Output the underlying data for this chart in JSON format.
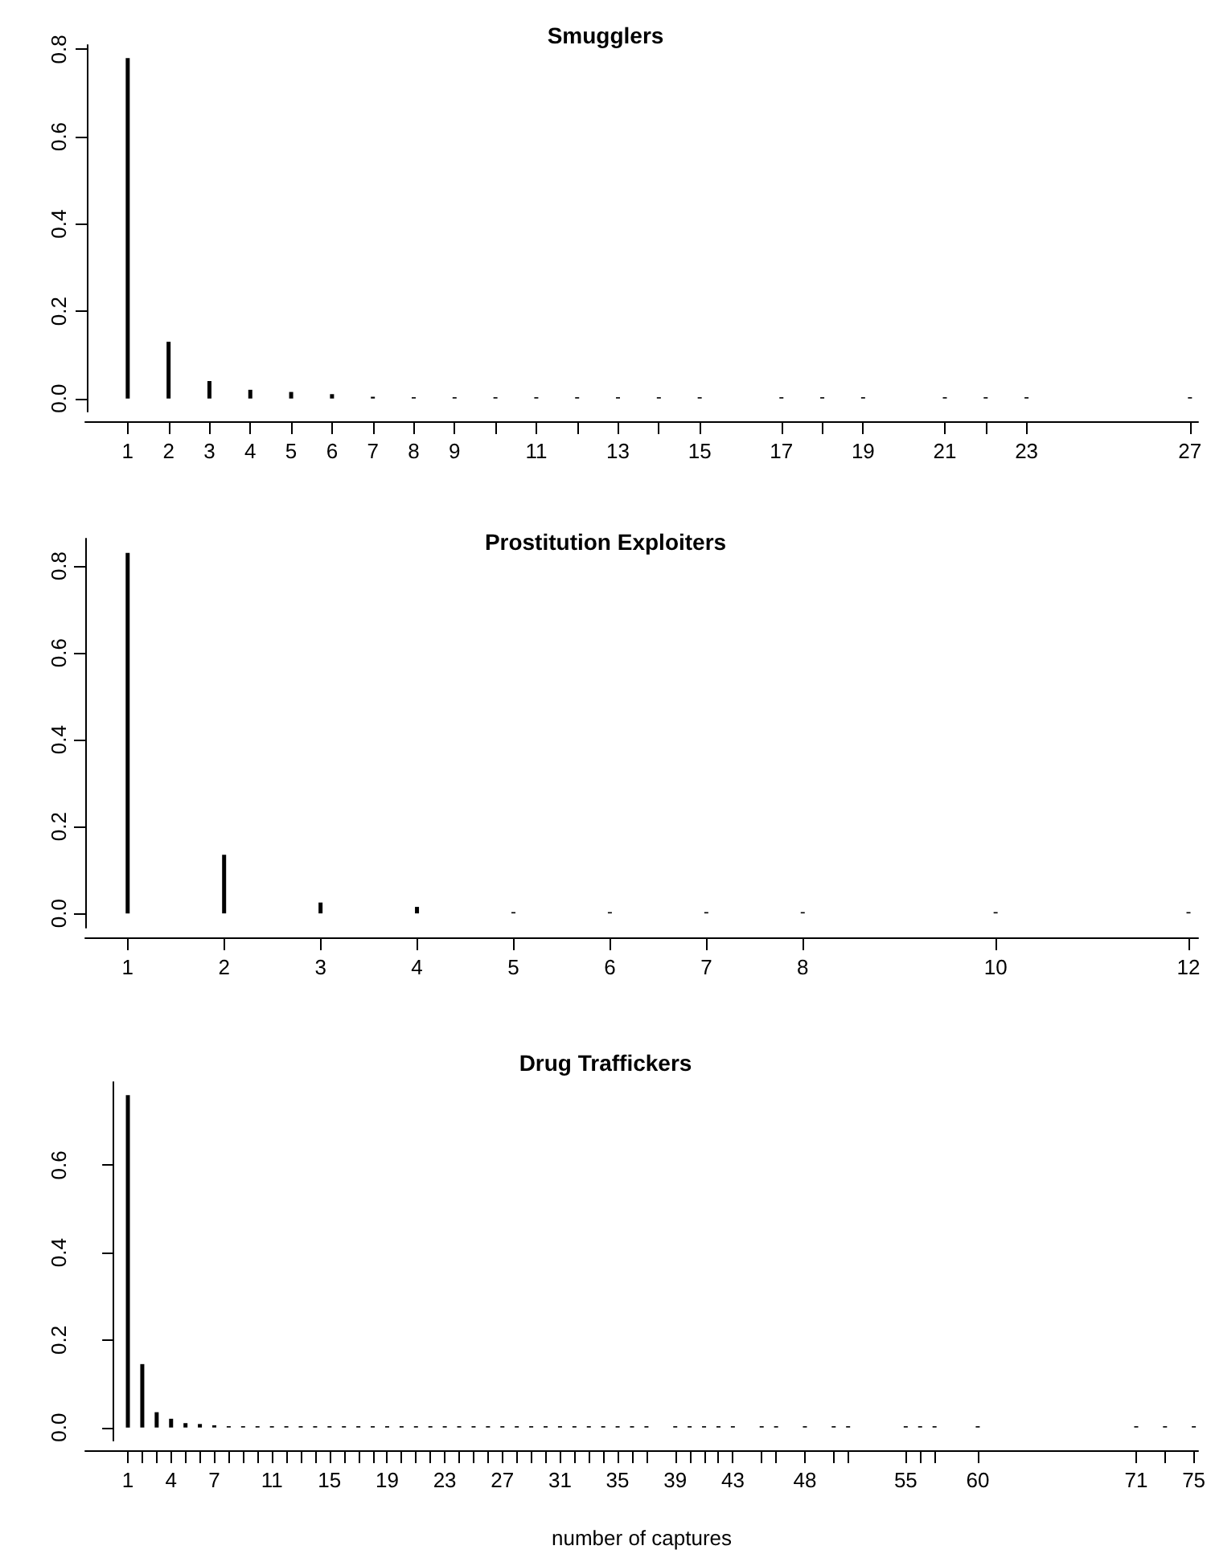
{
  "chart_data": [
    {
      "type": "bar",
      "title": "Smugglers",
      "x": [
        1,
        2,
        3,
        4,
        5,
        6,
        7,
        8,
        9,
        10,
        11,
        12,
        13,
        14,
        15,
        17,
        18,
        19,
        21,
        22,
        23,
        27
      ],
      "series": [
        {
          "color": "#000000",
          "values": [
            0.78,
            0.13,
            0.04,
            0.02,
            0.015,
            0.01,
            0.004,
            0.003,
            0.003,
            0.003,
            0.003,
            0.003,
            0.003,
            0.003,
            0.003,
            0.003,
            0.003,
            0.003,
            0.003,
            0.003,
            0.003,
            0.003
          ]
        }
      ],
      "xlim": [
        -0.04,
        27.2
      ],
      "ylim": [
        -0.03,
        0.81
      ],
      "yticks": [
        {
          "value": 0,
          "label": "0.0"
        },
        {
          "value": 0.2,
          "label": "0.2"
        },
        {
          "value": 0.4,
          "label": "0.4"
        },
        {
          "value": 0.6,
          "label": "0.6"
        },
        {
          "value": 0.8,
          "label": "0.8"
        }
      ],
      "xticks": [
        1,
        2,
        3,
        4,
        5,
        6,
        7,
        8,
        9,
        {
          "value": 10,
          "label": null
        },
        11,
        {
          "value": 12,
          "label": null
        },
        13,
        {
          "value": 14,
          "label": null
        },
        15,
        17,
        {
          "value": 18,
          "label": null
        },
        19,
        21,
        {
          "value": 22,
          "label": null
        },
        23,
        27
      ]
    },
    {
      "type": "bar",
      "title": "Prostitution Exploiters",
      "x": [
        1,
        2,
        3,
        4,
        5,
        6,
        7,
        8,
        10,
        12
      ],
      "series": [
        {
          "color": "#000000",
          "values": [
            0.83,
            0.135,
            0.025,
            0.015,
            0.003,
            0.003,
            0.003,
            0.003,
            0.003,
            0.003
          ]
        }
      ],
      "xlim": [
        0.56,
        12.1
      ],
      "ylim": [
        -0.033,
        0.863
      ],
      "yticks": [
        {
          "value": 0,
          "label": "0.0"
        },
        {
          "value": 0.2,
          "label": "0.2"
        },
        {
          "value": 0.4,
          "label": "0.4"
        },
        {
          "value": 0.6,
          "label": "0.6"
        },
        {
          "value": 0.8,
          "label": "0.8"
        }
      ],
      "xticks": [
        1,
        2,
        3,
        4,
        5,
        6,
        7,
        8,
        10,
        12
      ]
    },
    {
      "type": "bar",
      "title": "Drug Traffickers",
      "xlabel": "number of captures",
      "x": [
        1,
        2,
        3,
        4,
        5,
        6,
        7,
        8,
        9,
        10,
        11,
        12,
        13,
        14,
        15,
        16,
        17,
        18,
        19,
        20,
        21,
        22,
        23,
        24,
        25,
        26,
        27,
        28,
        29,
        30,
        31,
        32,
        33,
        34,
        35,
        36,
        37,
        39,
        40,
        41,
        42,
        43,
        45,
        46,
        48,
        50,
        51,
        55,
        56,
        57,
        60,
        71,
        73,
        75
      ],
      "series": [
        {
          "color": "#000000",
          "values": [
            0.76,
            0.145,
            0.035,
            0.02,
            0.01,
            0.008,
            0.005,
            0.003,
            0.003,
            0.003,
            0.003,
            0.003,
            0.003,
            0.003,
            0.003,
            0.003,
            0.003,
            0.003,
            0.003,
            0.003,
            0.003,
            0.003,
            0.003,
            0.003,
            0.003,
            0.003,
            0.003,
            0.003,
            0.003,
            0.003,
            0.003,
            0.003,
            0.003,
            0.003,
            0.003,
            0.003,
            0.003,
            0.003,
            0.003,
            0.003,
            0.003,
            0.003,
            0.003,
            0.003,
            0.003,
            0.003,
            0.003,
            0.003,
            0.003,
            0.003,
            0.003,
            0.003,
            0.003,
            0.003
          ]
        }
      ],
      "xlim": [
        -1.96,
        75.3
      ],
      "ylim": [
        -0.03,
        0.79
      ],
      "yticks": [
        {
          "value": 0,
          "label": "0.0"
        },
        {
          "value": 0.2,
          "label": "0.2"
        },
        {
          "value": 0.4,
          "label": "0.4"
        },
        {
          "value": 0.6,
          "label": "0.6"
        }
      ],
      "xticks": [
        1,
        {
          "value": 2,
          "label": null
        },
        {
          "value": 3,
          "label": null
        },
        4,
        {
          "value": 5,
          "label": null
        },
        {
          "value": 6,
          "label": null
        },
        7,
        {
          "value": 8,
          "label": null
        },
        {
          "value": 9,
          "label": null
        },
        {
          "value": 10,
          "label": null
        },
        11,
        {
          "value": 12,
          "label": null
        },
        {
          "value": 13,
          "label": null
        },
        {
          "value": 14,
          "label": null
        },
        15,
        {
          "value": 16,
          "label": null
        },
        {
          "value": 17,
          "label": null
        },
        {
          "value": 18,
          "label": null
        },
        19,
        {
          "value": 20,
          "label": null
        },
        {
          "value": 21,
          "label": null
        },
        {
          "value": 22,
          "label": null
        },
        23,
        {
          "value": 24,
          "label": null
        },
        {
          "value": 25,
          "label": null
        },
        {
          "value": 26,
          "label": null
        },
        27,
        {
          "value": 28,
          "label": null
        },
        {
          "value": 29,
          "label": null
        },
        {
          "value": 30,
          "label": null
        },
        31,
        {
          "value": 32,
          "label": null
        },
        {
          "value": 33,
          "label": null
        },
        {
          "value": 34,
          "label": null
        },
        35,
        {
          "value": 36,
          "label": null
        },
        {
          "value": 37,
          "label": null
        },
        39,
        {
          "value": 40,
          "label": null
        },
        {
          "value": 41,
          "label": null
        },
        {
          "value": 42,
          "label": null
        },
        43,
        {
          "value": 45,
          "label": null
        },
        {
          "value": 46,
          "label": null
        },
        48,
        {
          "value": 50,
          "label": null
        },
        {
          "value": 51,
          "label": null
        },
        55,
        {
          "value": 56,
          "label": null
        },
        {
          "value": 57,
          "label": null
        },
        60,
        71,
        {
          "value": 73,
          "label": null
        },
        75
      ]
    }
  ]
}
